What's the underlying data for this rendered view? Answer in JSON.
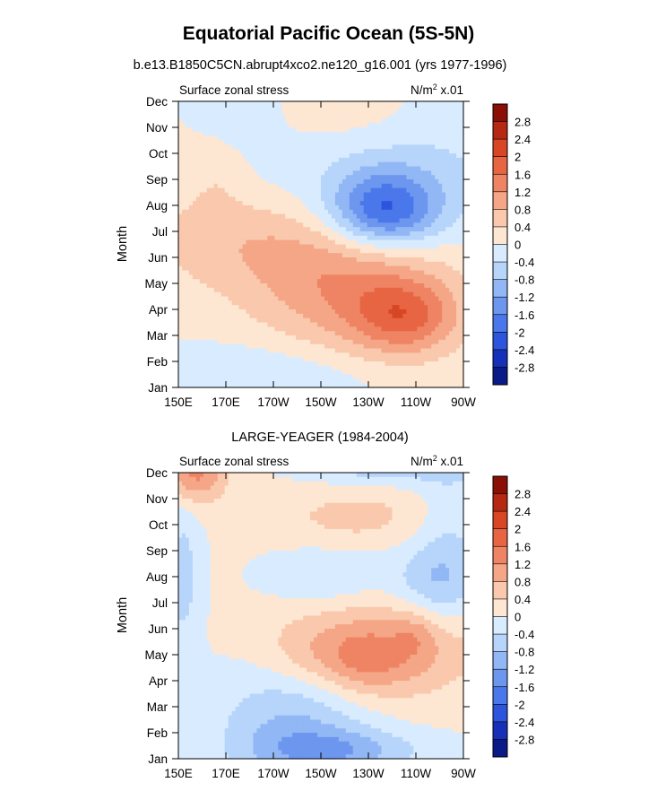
{
  "colors": {
    "neg": [
      "#d9ecff",
      "#b7d5fb",
      "#92b7f5",
      "#6d97ef",
      "#4a78ea",
      "#2d54dd",
      "#1730b8",
      "#0a1a87"
    ],
    "pos": [
      "#fde6d2",
      "#f9c8ad",
      "#f4a686",
      "#ee8463",
      "#e86543",
      "#d74625",
      "#b52811",
      "#8a1005"
    ]
  },
  "chart_data": {
    "type": "heatmap",
    "title": "Equatorial Pacific Ocean (5S-5N)",
    "units": "N/m² x.01",
    "xlabel": "",
    "ylabel": "Month",
    "x_ticks": [
      "150E",
      "170E",
      "170W",
      "150W",
      "130W",
      "110W",
      "90W"
    ],
    "x_range_lon": [
      150,
      270
    ],
    "y_ticks": [
      "Jan",
      "Feb",
      "Mar",
      "Apr",
      "May",
      "Jun",
      "Jul",
      "Aug",
      "Sep",
      "Oct",
      "Nov",
      "Dec"
    ],
    "contour_levels": [
      -2.8,
      -2.4,
      -2,
      -1.6,
      -1.2,
      -0.8,
      -0.4,
      0,
      0.4,
      0.8,
      1.2,
      1.6,
      2,
      2.4,
      2.8
    ],
    "colorbar_labels": [
      "2.8",
      "2.4",
      "2",
      "1.6",
      "1.2",
      "0.8",
      "0.4",
      "0",
      "-0.4",
      "-0.8",
      "-1.2",
      "-1.6",
      "-2",
      "-2.4",
      "-2.8"
    ],
    "panels": [
      {
        "subtitle": "b.e13.B1850C5CN.abrupt4xco2.ne120_g16.001 (yrs 1977-1996)",
        "left_label": "Surface zonal stress",
        "right_label_prefix": "N/m",
        "right_label_sup": "2",
        "right_label_suffix": " x.01",
        "features": [
          {
            "lon": 237,
            "month": 6.8,
            "slon": 16,
            "smonth": 1.0,
            "amp": -1.9
          },
          {
            "lon": 243,
            "month": 8.5,
            "slon": 34,
            "smonth": 1.8,
            "amp": -0.6
          },
          {
            "lon": 246,
            "month": 2.7,
            "slon": 15,
            "smonth": 1.0,
            "amp": 1.2
          },
          {
            "lon": 228,
            "month": 3.5,
            "slon": 28,
            "smonth": 1.7,
            "amp": 0.9
          },
          {
            "lon": 205,
            "month": 4.7,
            "slon": 30,
            "smonth": 1.6,
            "amp": 0.45
          },
          {
            "lon": 170,
            "month": 5.8,
            "slon": 28,
            "smonth": 1.3,
            "amp": 0.5
          },
          {
            "lon": 167,
            "month": 8.2,
            "slon": 10,
            "smonth": 1.0,
            "amp": 0.35
          },
          {
            "lon": 226,
            "month": 10.2,
            "slon": 25,
            "smonth": 1.0,
            "amp": 0.35
          },
          {
            "lon": 185,
            "month": 0.4,
            "slon": 35,
            "smonth": 0.9,
            "amp": -0.45
          },
          {
            "lon": 175,
            "month": 10.0,
            "slon": 14,
            "smonth": 2.5,
            "amp": -0.2
          }
        ]
      },
      {
        "subtitle": "LARGE-YEAGER (1984-2004)",
        "left_label": "Surface zonal stress",
        "right_label_prefix": "N/m",
        "right_label_sup": "2",
        "right_label_suffix": " x.01",
        "features": [
          {
            "lon": 238,
            "month": 4.2,
            "slon": 27,
            "smonth": 1.3,
            "amp": 1.1
          },
          {
            "lon": 227,
            "month": 3.7,
            "slon": 12,
            "smonth": 0.8,
            "amp": 0.5
          },
          {
            "lon": 250,
            "month": 4.8,
            "slon": 6,
            "smonth": 0.6,
            "amp": 0.35
          },
          {
            "lon": 203,
            "month": 4.2,
            "slon": 14,
            "smonth": 1.0,
            "amp": 0.3
          },
          {
            "lon": 157,
            "month": 11.0,
            "slon": 9,
            "smonth": 0.8,
            "amp": 1.3
          },
          {
            "lon": 225,
            "month": 9.3,
            "slon": 24,
            "smonth": 0.8,
            "amp": 0.5
          },
          {
            "lon": 198,
            "month": 1.3,
            "slon": 22,
            "smonth": 1.6,
            "amp": -0.9
          },
          {
            "lon": 218,
            "month": 0.3,
            "slon": 24,
            "smonth": 0.6,
            "amp": -0.9
          },
          {
            "lon": 237,
            "month": 11.3,
            "slon": 22,
            "smonth": 0.5,
            "amp": -0.8
          },
          {
            "lon": 213,
            "month": 7.0,
            "slon": 17,
            "smonth": 0.8,
            "amp": -0.45
          },
          {
            "lon": 257,
            "month": 6.8,
            "slon": 12,
            "smonth": 1.1,
            "amp": -0.7
          },
          {
            "lon": 152,
            "month": 7.0,
            "slon": 5,
            "smonth": 2.2,
            "amp": -0.6
          },
          {
            "lon": 265,
            "month": 9.0,
            "slon": 10,
            "smonth": 3.0,
            "amp": -0.4
          }
        ]
      }
    ]
  }
}
